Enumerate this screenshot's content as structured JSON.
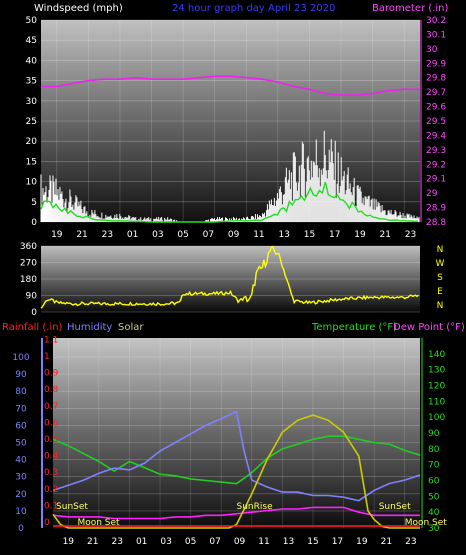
{
  "header": {
    "left_label": "Windspeed (mph)",
    "title": "24 hour graph day   April 23 2020",
    "right_label": "Barometer (.in)"
  },
  "colors": {
    "wind": "#ffffff",
    "wind_avg": "#22dd22",
    "barometer": "#ee22ee",
    "wind_dir": "#ffff00",
    "rain": "#ff2222",
    "humidity": "#8080ff",
    "solar": "#cccc00",
    "temperature": "#22cc22",
    "dewpoint": "#ff22ff"
  },
  "hour_labels": [
    "19",
    "21",
    "23",
    "01",
    "03",
    "05",
    "07",
    "09",
    "11",
    "13",
    "15",
    "17",
    "19",
    "21",
    "23"
  ],
  "chart_data": [
    {
      "type": "line",
      "name": "wind-barometer",
      "xlabel_hours_start": 18,
      "left_axis": {
        "label": "Windspeed (mph)",
        "ylim": [
          0,
          50
        ],
        "ticks": [
          0,
          5,
          10,
          15,
          20,
          25,
          30,
          35,
          40,
          45,
          50
        ]
      },
      "right_axis": {
        "label": "Barometer (.in)",
        "ylim": [
          28.8,
          30.2
        ],
        "ticks": [
          "28.8",
          "28.9",
          "29",
          "29.1",
          "29.2",
          "29.3",
          "29.4",
          "29.5",
          "29.6",
          "29.7",
          "29.8",
          "29.9",
          "30",
          "30.1",
          "30.2"
        ]
      },
      "series": [
        {
          "name": "Barometer (.in)",
          "axis": "right",
          "x": [
            18,
            19,
            20,
            21,
            22,
            23,
            24,
            25,
            26,
            27,
            28,
            29,
            30,
            31,
            32,
            33,
            34,
            35,
            36,
            37,
            38,
            39,
            40,
            41,
            42
          ],
          "values": [
            29.74,
            29.74,
            29.76,
            29.78,
            29.79,
            29.79,
            29.8,
            29.79,
            29.79,
            29.79,
            29.8,
            29.81,
            29.81,
            29.8,
            29.79,
            29.77,
            29.74,
            29.72,
            29.69,
            29.68,
            29.68,
            29.69,
            29.71,
            29.72,
            29.72
          ]
        }
      ],
      "gust_profile": {
        "x": [
          18,
          19,
          20,
          21,
          22,
          23,
          24,
          25,
          26,
          27,
          28,
          29,
          30,
          31,
          32,
          33,
          34,
          35,
          36,
          37,
          38,
          39,
          40,
          41,
          42
        ],
        "values": [
          10,
          9,
          6,
          3,
          2,
          2,
          1,
          1,
          1,
          0,
          0,
          1,
          1,
          1,
          2,
          8,
          14,
          18,
          20,
          14,
          8,
          5,
          3,
          2,
          1
        ]
      },
      "avg_profile": {
        "x": [
          18,
          19,
          20,
          21,
          22,
          23,
          24,
          25,
          26,
          27,
          28,
          29,
          30,
          31,
          32,
          33,
          34,
          35,
          36,
          37,
          38,
          39,
          40,
          41,
          42
        ],
        "values": [
          4,
          4,
          2,
          1,
          0.5,
          0.3,
          0.2,
          0,
          0,
          0,
          0,
          0,
          0.3,
          0.3,
          0.5,
          2,
          5,
          7,
          8,
          6,
          3,
          1,
          0.5,
          0.3,
          0.2
        ]
      }
    },
    {
      "type": "line",
      "name": "wind-direction",
      "left_axis": {
        "ticks": [
          0,
          90,
          180,
          270,
          360
        ]
      },
      "right_axis": {
        "ticks": [
          "N",
          "W",
          "S",
          "E",
          "N"
        ]
      },
      "series": [
        {
          "name": "Wind Direction",
          "x": [
            18,
            18.4,
            18.8,
            19,
            20,
            21,
            22,
            23,
            24,
            25,
            26,
            26.8,
            27,
            28,
            29,
            30,
            30.5,
            31,
            31.3,
            31.6,
            32,
            32.5,
            33,
            34,
            35,
            36,
            37,
            38,
            39,
            40,
            41,
            42
          ],
          "values": [
            20,
            70,
            60,
            50,
            45,
            45,
            45,
            45,
            45,
            45,
            45,
            50,
            100,
            100,
            100,
            105,
            60,
            80,
            60,
            200,
            240,
            330,
            330,
            60,
            50,
            60,
            70,
            75,
            80,
            80,
            80,
            90
          ]
        }
      ]
    },
    {
      "type": "line",
      "name": "climate",
      "left_axis": {
        "ticks": [
          0,
          10,
          20,
          30,
          40,
          50,
          60,
          70,
          80,
          90,
          100
        ],
        "ylim": [
          0,
          100
        ]
      },
      "rain_axis": {
        "ticks": [
          "0",
          "0.1",
          "0.2",
          "0.3",
          "0.4",
          "0.5",
          "0.6",
          "0.7",
          "0.8",
          "0.9",
          "1",
          "1.1"
        ]
      },
      "right_axis": {
        "ticks": [
          30,
          40,
          50,
          60,
          70,
          80,
          90,
          100,
          110,
          120,
          130,
          140
        ],
        "ylim": [
          30,
          150
        ]
      },
      "legend": {
        "rain": "Rainfall (.in)",
        "humidity": "Humidity",
        "solar": "Solar",
        "temperature": "Temperature (°F)",
        "dewpoint": "Dew Point (°F)"
      },
      "series": [
        {
          "name": "Humidity",
          "x": [
            18,
            19,
            20,
            21,
            22,
            23,
            24,
            25,
            26,
            27,
            28,
            29,
            30,
            30.5,
            31,
            32,
            33,
            34,
            35,
            36,
            37,
            38,
            39,
            40,
            41,
            42
          ],
          "values": [
            22,
            25,
            28,
            32,
            35,
            34,
            38,
            45,
            50,
            55,
            60,
            64,
            68,
            45,
            28,
            24,
            21,
            21,
            19,
            19,
            18,
            16,
            22,
            26,
            28,
            31
          ]
        },
        {
          "name": "Temperature (°F)",
          "x": [
            18,
            19,
            20,
            21,
            22,
            23,
            24,
            25,
            26,
            27,
            28,
            29,
            30,
            31,
            32,
            33,
            34,
            35,
            36,
            37,
            38,
            39,
            40,
            41,
            42
          ],
          "values": [
            86,
            82,
            77,
            72,
            66,
            72,
            68,
            64,
            63,
            61,
            60,
            59,
            58,
            65,
            74,
            80,
            83,
            86,
            88,
            88,
            86,
            84,
            83,
            79,
            76
          ]
        },
        {
          "name": "Dew Point (°F)",
          "x": [
            18,
            19,
            20,
            21,
            22,
            23,
            24,
            25,
            26,
            27,
            28,
            29,
            30,
            31,
            32,
            33,
            34,
            35,
            36,
            37,
            38,
            39,
            40,
            41,
            42
          ],
          "values": [
            38,
            37,
            37,
            37,
            36,
            36,
            36,
            36,
            37,
            37,
            38,
            38,
            39,
            40,
            41,
            42,
            42,
            43,
            43,
            43,
            40,
            38,
            38,
            38,
            38
          ]
        },
        {
          "name": "Solar",
          "x": [
            18,
            18.5,
            19,
            29.5,
            30,
            31,
            32,
            33,
            34,
            35,
            36,
            37,
            38,
            38.6,
            39,
            39.5,
            40,
            42
          ],
          "values": [
            8,
            2,
            0,
            0,
            2,
            20,
            40,
            56,
            63,
            66,
            63,
            56,
            42,
            10,
            5,
            1,
            0,
            0
          ]
        },
        {
          "name": "Rainfall (.in)",
          "x": [
            18,
            42
          ],
          "values": [
            0,
            0
          ]
        }
      ],
      "annotations": [
        {
          "text": "SunSet",
          "hour": 18.2
        },
        {
          "text": "Moon Set",
          "hour": 19.6
        },
        {
          "text": "SunRise",
          "hour": 30.0
        },
        {
          "text": "SunSet",
          "hour": 39.3
        },
        {
          "text": "Moon Set",
          "hour": 41.0
        }
      ]
    }
  ]
}
